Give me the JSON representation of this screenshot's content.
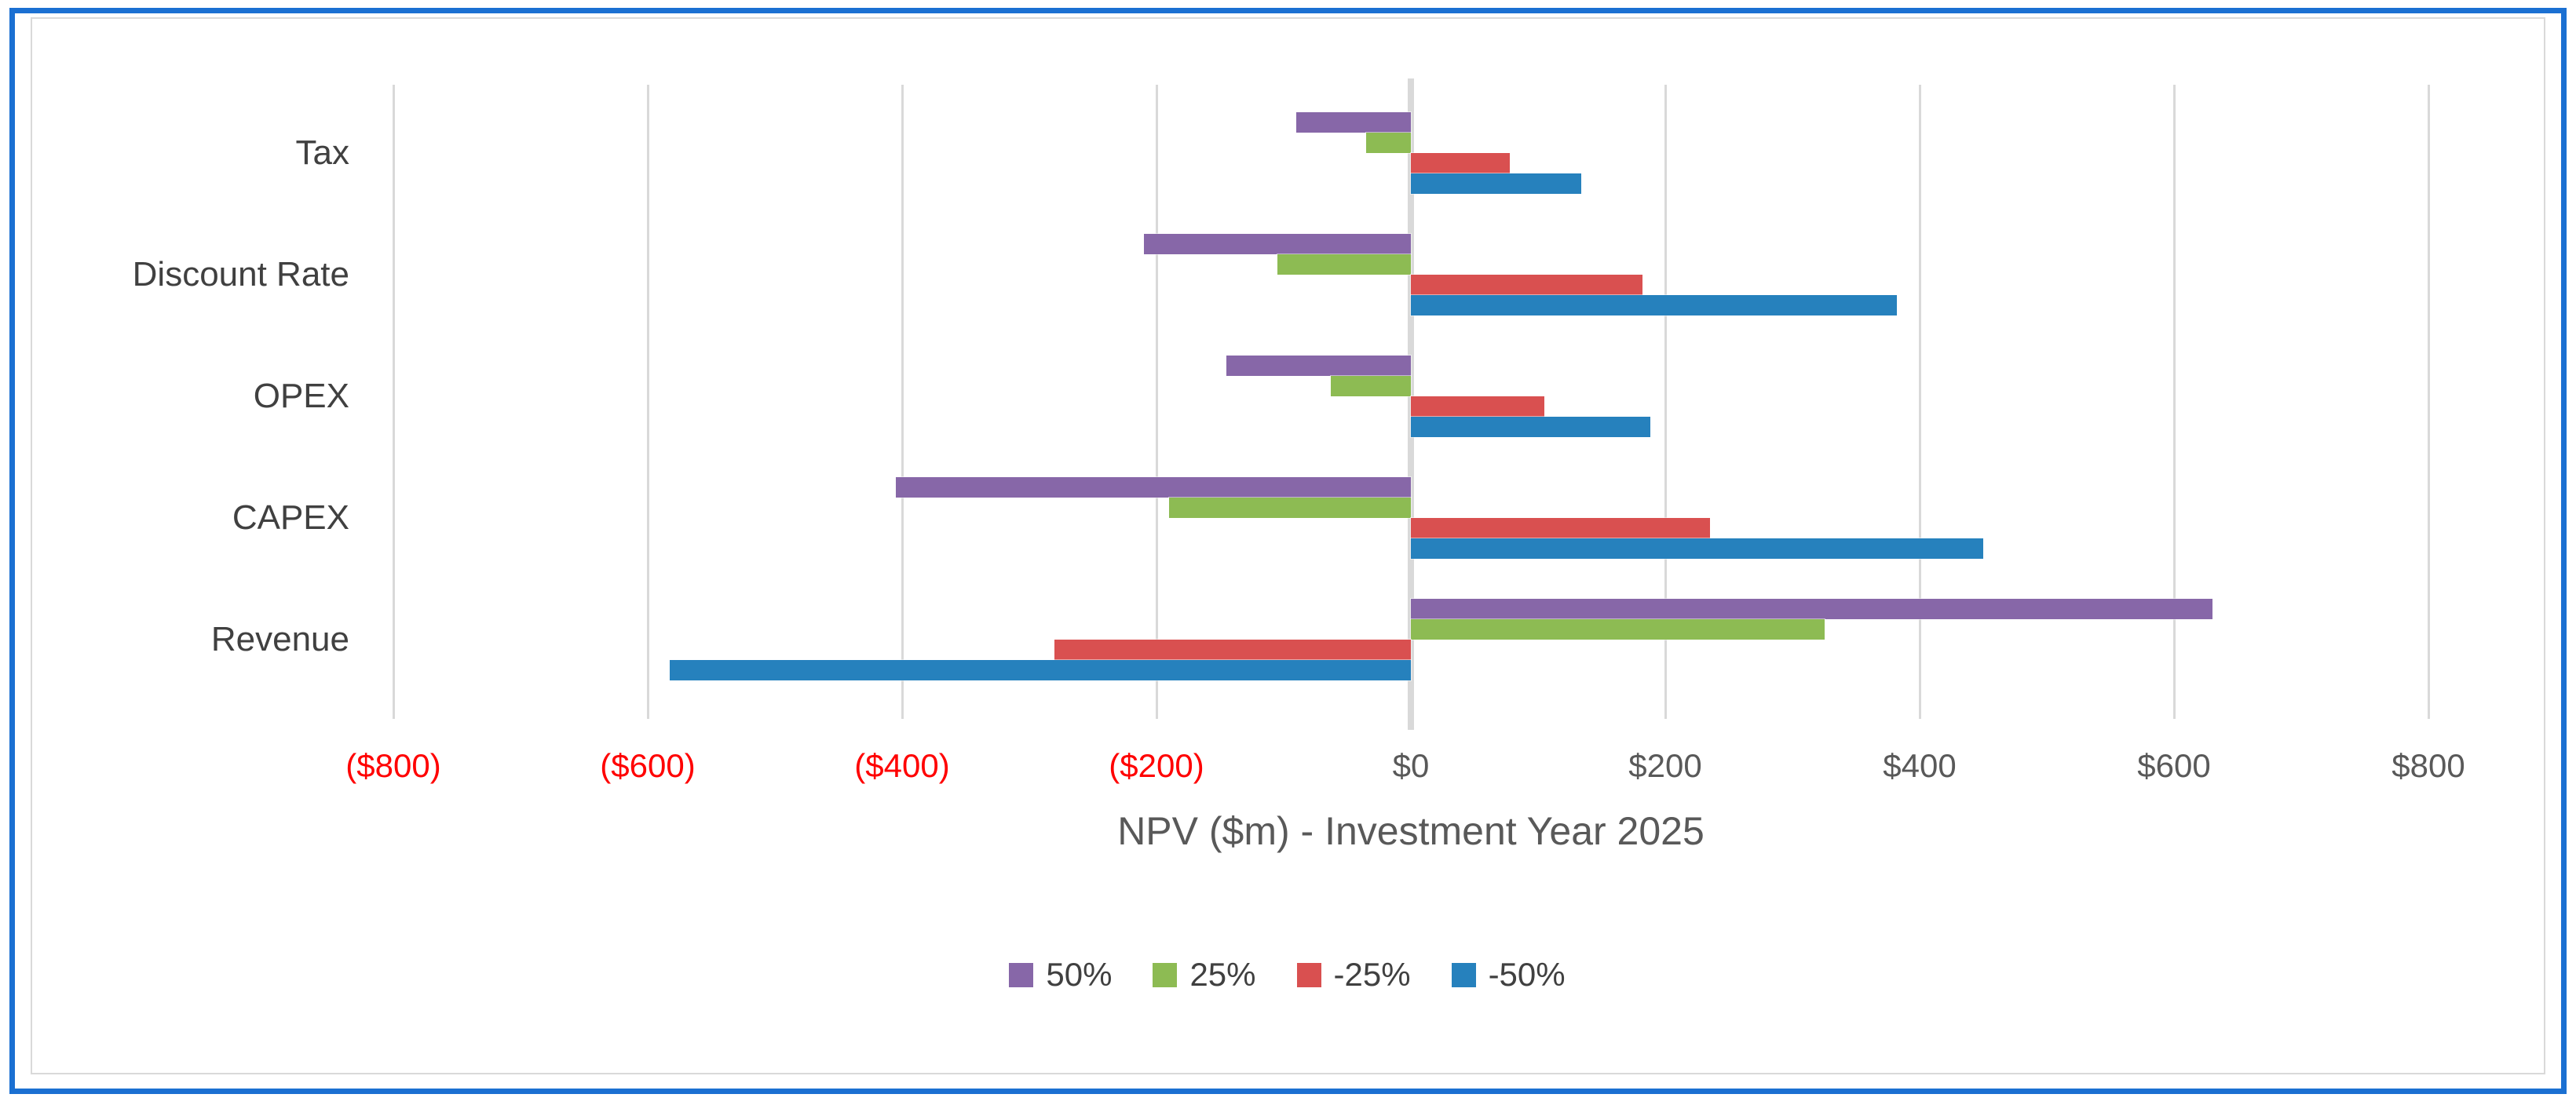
{
  "chart_data": {
    "type": "bar",
    "orientation": "horizontal",
    "title": "",
    "xlabel": "NPV ($m) - Investment Year 2025",
    "categories": [
      "Tax",
      "Discount Rate",
      "OPEX",
      "CAPEX",
      "Revenue"
    ],
    "series": [
      {
        "name": "50%",
        "color": "#8767A8",
        "values": [
          -90,
          -210,
          -145,
          -405,
          630
        ]
      },
      {
        "name": "25%",
        "color": "#8DBB53",
        "values": [
          -35,
          -105,
          -63,
          -190,
          325
        ]
      },
      {
        "name": "-25%",
        "color": "#D95050",
        "values": [
          78,
          182,
          105,
          235,
          -280
        ]
      },
      {
        "name": "-50%",
        "color": "#2681BD",
        "values": [
          134,
          382,
          188,
          450,
          -583
        ]
      }
    ],
    "x_axis": {
      "min": -800,
      "max": 800,
      "tick_step": 200,
      "ticks": [
        {
          "value": -800,
          "label": "($800)",
          "color": "#FF0000"
        },
        {
          "value": -600,
          "label": "($600)",
          "color": "#FF0000"
        },
        {
          "value": -400,
          "label": "($400)",
          "color": "#FF0000"
        },
        {
          "value": -200,
          "label": "($200)",
          "color": "#FF0000"
        },
        {
          "value": 0,
          "label": "$0",
          "color": "#595959"
        },
        {
          "value": 200,
          "label": "$200",
          "color": "#595959"
        },
        {
          "value": 400,
          "label": "$400",
          "color": "#595959"
        },
        {
          "value": 600,
          "label": "$600",
          "color": "#595959"
        },
        {
          "value": 800,
          "label": "$800",
          "color": "#595959"
        }
      ]
    },
    "grid": true,
    "legend_position": "bottom",
    "legend_entries": [
      "50%",
      "25%",
      "-25%",
      "-50%"
    ]
  },
  "frame": {
    "outer_border_color": "#1B70D2",
    "chart_border_color": "#D9D9D9",
    "gridline_color": "#D9D9D9",
    "category_label_color": "#404040",
    "axis_title_color": "#595959"
  }
}
